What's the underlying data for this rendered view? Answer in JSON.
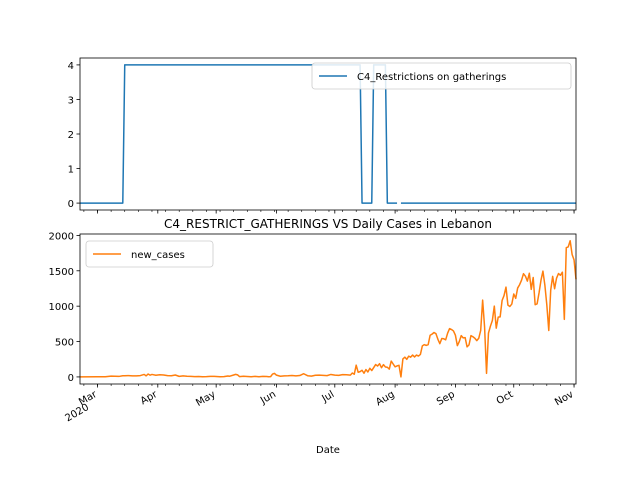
{
  "figure": {
    "xlabel": "Date"
  },
  "chart_data": [
    {
      "type": "line",
      "title": "",
      "xlabel": "",
      "ylabel": "",
      "ylim": [
        -0.2,
        4.2
      ],
      "y_ticks": [
        0,
        1,
        2,
        3,
        4
      ],
      "xlim": [
        "2020-02-21",
        "2020-11-02"
      ],
      "x_month_ticks": [
        "2020-03-01",
        "2020-04-01",
        "2020-05-01",
        "2020-06-01",
        "2020-07-01",
        "2020-08-01",
        "2020-09-01",
        "2020-10-01",
        "2020-11-01"
      ],
      "grid": false,
      "legend": {
        "placement": "top-right",
        "entries": [
          "C4_Restrictions on gatherings"
        ]
      },
      "series": [
        {
          "name": "C4_Restrictions on gatherings",
          "color": "#1f77b4",
          "points": [
            [
              "2020-02-21",
              0
            ],
            [
              "2020-03-14",
              0
            ],
            [
              "2020-03-15",
              4
            ],
            [
              "2020-07-14",
              4
            ],
            [
              "2020-07-15",
              0
            ],
            [
              "2020-07-20",
              0
            ],
            [
              "2020-07-21",
              4
            ],
            [
              "2020-07-27",
              4
            ],
            [
              "2020-07-28",
              0
            ],
            [
              "2020-08-02",
              0
            ],
            [
              "2020-08-03",
              null
            ],
            [
              "2020-08-04",
              0
            ],
            [
              "2020-11-02",
              0
            ]
          ]
        }
      ]
    },
    {
      "type": "line",
      "title": "C4_RESTRICT_GATHERINGS VS Daily Cases in Lebanon",
      "xlabel": "Date",
      "ylabel": "",
      "ylim": [
        -100,
        2020
      ],
      "y_ticks": [
        0,
        500,
        1000,
        1500,
        2000
      ],
      "xlim": [
        "2020-02-21",
        "2020-11-02"
      ],
      "x_month_ticks": [
        "2020-03-01",
        "2020-04-01",
        "2020-05-01",
        "2020-06-01",
        "2020-07-01",
        "2020-08-01",
        "2020-09-01",
        "2020-10-01",
        "2020-11-01"
      ],
      "x_tick_labels": [
        "Mar\n2020",
        "Apr",
        "May",
        "Jun",
        "Jul",
        "Aug",
        "Sep",
        "Oct",
        "Nov"
      ],
      "grid": false,
      "legend": {
        "placement": "top-left",
        "entries": [
          "new_cases"
        ]
      },
      "series": [
        {
          "name": "new_cases",
          "color": "#ff7f0e",
          "points": [
            [
              "2020-02-21",
              1
            ],
            [
              "2020-03-01",
              3
            ],
            [
              "2020-03-05",
              2
            ],
            [
              "2020-03-08",
              12
            ],
            [
              "2020-03-10",
              10
            ],
            [
              "2020-03-12",
              7
            ],
            [
              "2020-03-14",
              16
            ],
            [
              "2020-03-15",
              17
            ],
            [
              "2020-03-17",
              19
            ],
            [
              "2020-03-19",
              14
            ],
            [
              "2020-03-21",
              14
            ],
            [
              "2020-03-23",
              19
            ],
            [
              "2020-03-25",
              35
            ],
            [
              "2020-03-26",
              15
            ],
            [
              "2020-03-27",
              41
            ],
            [
              "2020-03-28",
              25
            ],
            [
              "2020-03-29",
              35
            ],
            [
              "2020-03-31",
              24
            ],
            [
              "2020-04-02",
              31
            ],
            [
              "2020-04-04",
              27
            ],
            [
              "2020-04-06",
              18
            ],
            [
              "2020-04-08",
              16
            ],
            [
              "2020-04-10",
              27
            ],
            [
              "2020-04-12",
              8
            ],
            [
              "2020-04-14",
              15
            ],
            [
              "2020-04-16",
              10
            ],
            [
              "2020-04-18",
              8
            ],
            [
              "2020-04-20",
              5
            ],
            [
              "2020-04-22",
              6
            ],
            [
              "2020-04-24",
              3
            ],
            [
              "2020-04-26",
              4
            ],
            [
              "2020-04-28",
              7
            ],
            [
              "2020-04-30",
              8
            ],
            [
              "2020-05-03",
              3
            ],
            [
              "2020-05-05",
              4
            ],
            [
              "2020-05-07",
              13
            ],
            [
              "2020-05-08",
              10
            ],
            [
              "2020-05-10",
              27
            ],
            [
              "2020-05-11",
              36
            ],
            [
              "2020-05-12",
              29
            ],
            [
              "2020-05-13",
              5
            ],
            [
              "2020-05-15",
              9
            ],
            [
              "2020-05-17",
              6
            ],
            [
              "2020-05-19",
              3
            ],
            [
              "2020-05-21",
              8
            ],
            [
              "2020-05-23",
              2
            ],
            [
              "2020-05-25",
              7
            ],
            [
              "2020-05-27",
              6
            ],
            [
              "2020-05-28",
              2
            ],
            [
              "2020-05-29",
              4
            ],
            [
              "2020-05-30",
              40
            ],
            [
              "2020-05-31",
              50
            ],
            [
              "2020-06-01",
              25
            ],
            [
              "2020-06-03",
              10
            ],
            [
              "2020-06-05",
              15
            ],
            [
              "2020-06-07",
              16
            ],
            [
              "2020-06-09",
              20
            ],
            [
              "2020-06-11",
              14
            ],
            [
              "2020-06-13",
              20
            ],
            [
              "2020-06-15",
              45
            ],
            [
              "2020-06-17",
              17
            ],
            [
              "2020-06-19",
              12
            ],
            [
              "2020-06-21",
              24
            ],
            [
              "2020-06-23",
              25
            ],
            [
              "2020-06-25",
              22
            ],
            [
              "2020-06-27",
              18
            ],
            [
              "2020-06-29",
              35
            ],
            [
              "2020-07-01",
              26
            ],
            [
              "2020-07-03",
              22
            ],
            [
              "2020-07-05",
              33
            ],
            [
              "2020-07-07",
              30
            ],
            [
              "2020-07-09",
              25
            ],
            [
              "2020-07-10",
              55
            ],
            [
              "2020-07-11",
              38
            ],
            [
              "2020-07-12",
              166
            ],
            [
              "2020-07-13",
              66
            ],
            [
              "2020-07-14",
              75
            ],
            [
              "2020-07-15",
              94
            ],
            [
              "2020-07-16",
              52
            ],
            [
              "2020-07-17",
              104
            ],
            [
              "2020-07-18",
              70
            ],
            [
              "2020-07-19",
              122
            ],
            [
              "2020-07-20",
              90
            ],
            [
              "2020-07-21",
              132
            ],
            [
              "2020-07-22",
              175
            ],
            [
              "2020-07-23",
              154
            ],
            [
              "2020-07-24",
              187
            ],
            [
              "2020-07-25",
              130
            ],
            [
              "2020-07-26",
              174
            ],
            [
              "2020-07-27",
              141
            ],
            [
              "2020-07-28",
              137
            ],
            [
              "2020-07-29",
              110
            ],
            [
              "2020-07-30",
              224
            ],
            [
              "2020-07-31",
              183
            ],
            [
              "2020-08-01",
              143
            ],
            [
              "2020-08-02",
              156
            ],
            [
              "2020-08-03",
              164
            ],
            [
              "2020-08-04",
              0
            ],
            [
              "2020-08-05",
              255
            ],
            [
              "2020-08-06",
              279
            ],
            [
              "2020-08-07",
              249
            ],
            [
              "2020-08-08",
              294
            ],
            [
              "2020-08-09",
              279
            ],
            [
              "2020-08-10",
              309
            ],
            [
              "2020-08-11",
              282
            ],
            [
              "2020-08-12",
              309
            ],
            [
              "2020-08-13",
              295
            ],
            [
              "2020-08-14",
              318
            ],
            [
              "2020-08-15",
              439
            ],
            [
              "2020-08-16",
              456
            ],
            [
              "2020-08-17",
              446
            ],
            [
              "2020-08-18",
              456
            ],
            [
              "2020-08-19",
              589
            ],
            [
              "2020-08-20",
              605
            ],
            [
              "2020-08-21",
              628
            ],
            [
              "2020-08-22",
              611
            ],
            [
              "2020-08-23",
              532
            ],
            [
              "2020-08-24",
              470
            ],
            [
              "2020-08-25",
              543
            ],
            [
              "2020-08-26",
              539
            ],
            [
              "2020-08-27",
              525
            ],
            [
              "2020-08-28",
              618
            ],
            [
              "2020-08-29",
              683
            ],
            [
              "2020-08-30",
              670
            ],
            [
              "2020-08-31",
              650
            ],
            [
              "2020-09-01",
              590
            ],
            [
              "2020-09-02",
              442
            ],
            [
              "2020-09-03",
              500
            ],
            [
              "2020-09-04",
              584
            ],
            [
              "2020-09-05",
              552
            ],
            [
              "2020-09-06",
              556
            ],
            [
              "2020-09-07",
              425
            ],
            [
              "2020-09-08",
              453
            ],
            [
              "2020-09-09",
              584
            ],
            [
              "2020-09-10",
              568
            ],
            [
              "2020-09-11",
              547
            ],
            [
              "2020-09-12",
              513
            ],
            [
              "2020-09-13",
              546
            ],
            [
              "2020-09-14",
              657
            ],
            [
              "2020-09-15",
              1085
            ],
            [
              "2020-09-16",
              707
            ],
            [
              "2020-09-17",
              50
            ],
            [
              "2020-09-18",
              620
            ],
            [
              "2020-09-19",
              717
            ],
            [
              "2020-09-20",
              797
            ],
            [
              "2020-09-21",
              1001
            ],
            [
              "2020-09-22",
              689
            ],
            [
              "2020-09-23",
              846
            ],
            [
              "2020-09-24",
              849
            ],
            [
              "2020-09-25",
              1080
            ],
            [
              "2020-09-26",
              1150
            ],
            [
              "2020-09-27",
              1269
            ],
            [
              "2020-09-28",
              1015
            ],
            [
              "2020-09-29",
              996
            ],
            [
              "2020-09-30",
              1030
            ],
            [
              "2020-10-01",
              1172
            ],
            [
              "2020-10-02",
              1111
            ],
            [
              "2020-10-03",
              1256
            ],
            [
              "2020-10-04",
              1303
            ],
            [
              "2020-10-05",
              1367
            ],
            [
              "2020-10-06",
              1459
            ],
            [
              "2020-10-07",
              1424
            ],
            [
              "2020-10-08",
              1354
            ],
            [
              "2020-10-09",
              1465
            ],
            [
              "2020-10-10",
              1237
            ],
            [
              "2020-10-11",
              1405
            ],
            [
              "2020-10-12",
              1020
            ],
            [
              "2020-10-13",
              1033
            ],
            [
              "2020-10-14",
              1188
            ],
            [
              "2020-10-15",
              1367
            ],
            [
              "2020-10-16",
              1495
            ],
            [
              "2020-10-17",
              1296
            ],
            [
              "2020-10-18",
              1017
            ],
            [
              "2020-10-19",
              657
            ],
            [
              "2020-10-20",
              1227
            ],
            [
              "2020-10-21",
              1421
            ],
            [
              "2020-10-22",
              1246
            ],
            [
              "2020-10-23",
              1396
            ],
            [
              "2020-10-24",
              1461
            ],
            [
              "2020-10-25",
              1437
            ],
            [
              "2020-10-26",
              1480
            ],
            [
              "2020-10-27",
              813
            ],
            [
              "2020-10-28",
              1827
            ],
            [
              "2020-10-29",
              1838
            ],
            [
              "2020-10-30",
              1925
            ],
            [
              "2020-10-31",
              1731
            ],
            [
              "2020-11-01",
              1655
            ],
            [
              "2020-11-02",
              1380
            ]
          ]
        }
      ]
    }
  ]
}
